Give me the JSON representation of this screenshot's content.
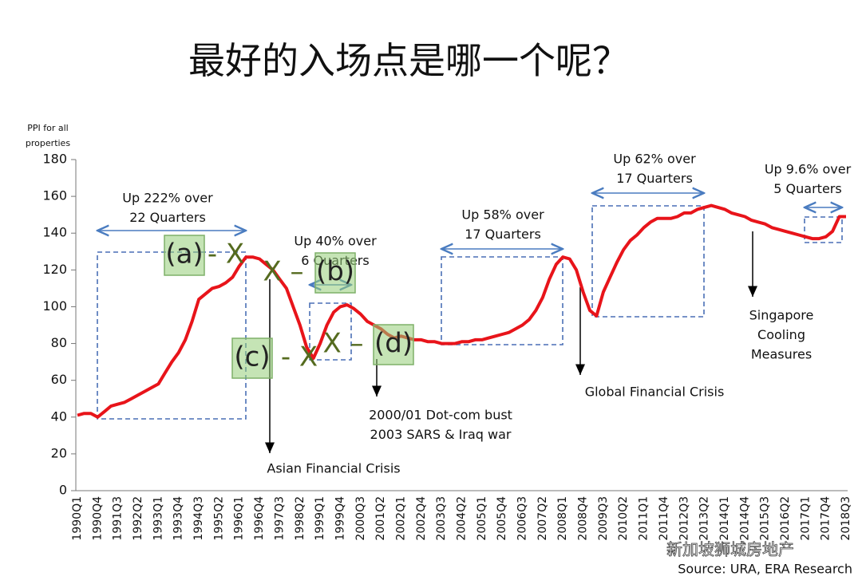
{
  "chart_data": {
    "type": "line",
    "title": "最好的入场点是哪一个呢？",
    "y_label": [
      "PPI for all",
      "properties"
    ],
    "source": "Source: URA, ERA Research",
    "watermark": "新加坡狮城房地产",
    "categories": [
      "1990Q1",
      null,
      null,
      "1990Q4",
      null,
      null,
      "1991Q3",
      null,
      null,
      "1992Q2",
      null,
      null,
      "1993Q1",
      null,
      null,
      "1993Q4",
      null,
      null,
      "1994Q3",
      null,
      null,
      "1995Q2",
      null,
      null,
      "1996Q1",
      null,
      null,
      "1996Q4",
      null,
      null,
      "1997Q3",
      null,
      null,
      "1998Q2",
      null,
      null,
      "1999Q1",
      null,
      null,
      "1999Q4",
      null,
      null,
      "2000Q3",
      null,
      null,
      "2001Q2",
      null,
      null,
      "2002Q1",
      null,
      null,
      "2002Q4",
      null,
      null,
      "2003Q3",
      null,
      null,
      "2004Q2",
      null,
      null,
      "2005Q1",
      null,
      null,
      "2005Q4",
      null,
      null,
      "2006Q3",
      null,
      null,
      "2007Q2",
      null,
      null,
      "2008Q1",
      null,
      null,
      "2008Q4",
      null,
      null,
      "2009Q3",
      null,
      null,
      "2010Q2",
      null,
      null,
      "2011Q1",
      null,
      null,
      "2011Q4",
      null,
      null,
      "2012Q3",
      null,
      null,
      "2013Q2",
      null,
      null,
      "2014Q1",
      null,
      null,
      "2014Q4",
      null,
      null,
      "2015Q3",
      null,
      null,
      "2016Q2",
      null,
      null,
      "2017Q1",
      null,
      null,
      "2017Q4",
      null,
      null,
      "2018Q3"
    ],
    "series": [
      {
        "name": "PPI",
        "color": "#e8141a",
        "values": [
          41,
          42,
          42,
          40,
          43,
          46,
          47,
          48,
          50,
          52,
          54,
          56,
          58,
          64,
          70,
          75,
          82,
          92,
          104,
          107,
          110,
          111,
          113,
          116,
          122,
          127,
          127,
          126,
          123,
          120,
          115,
          110,
          100,
          90,
          78,
          72,
          80,
          90,
          97,
          100,
          101,
          99,
          96,
          92,
          90,
          88,
          85,
          83,
          84,
          83,
          82,
          82,
          81,
          81,
          80,
          80,
          80,
          81,
          81,
          82,
          82,
          83,
          84,
          85,
          86,
          88,
          90,
          93,
          98,
          105,
          115,
          123,
          127,
          126,
          120,
          108,
          98,
          95,
          108,
          116,
          124,
          131,
          136,
          139,
          143,
          146,
          148,
          148,
          148,
          149,
          151,
          151,
          153,
          154,
          155,
          154,
          153,
          151,
          150,
          149,
          147,
          146,
          145,
          143,
          142,
          141,
          140,
          139,
          138,
          137,
          137,
          138,
          141,
          149,
          149
        ]
      }
    ],
    "ylim": [
      0,
      180
    ],
    "yticks": [
      0,
      20,
      40,
      60,
      80,
      100,
      120,
      140,
      160,
      180
    ],
    "annotations": [
      {
        "lines": [
          "Up 222% over",
          "22 Quarters"
        ]
      },
      {
        "lines": [
          "Up 40% over",
          "6 Quarters"
        ]
      },
      {
        "lines": [
          "Up 58% over",
          "17 Quarters"
        ]
      },
      {
        "lines": [
          "Up 62% over",
          "17 Quarters"
        ]
      },
      {
        "lines": [
          "Up 9.6% over",
          "5 Quarters"
        ]
      },
      {
        "lines": [
          "Asian Financial Crisis"
        ]
      },
      {
        "lines": [
          "2000/01 Dot-com bust",
          "2003 SARS & Iraq war"
        ]
      },
      {
        "lines": [
          "Global Financial Crisis"
        ]
      },
      {
        "lines": [
          "Singapore",
          "Cooling",
          "Measures"
        ]
      }
    ],
    "markers": [
      "(a)",
      "- X",
      "X –",
      "(b)",
      "(c)",
      "- X",
      "X –",
      "(d)"
    ]
  }
}
